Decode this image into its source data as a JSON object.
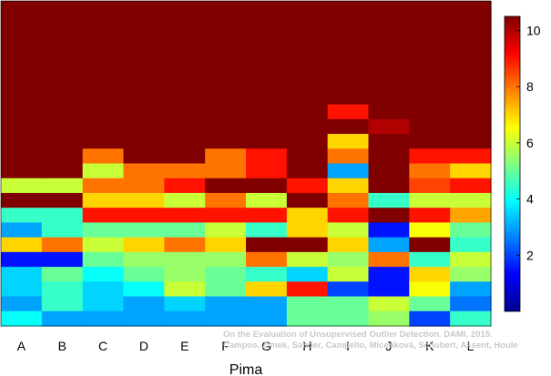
{
  "chart_data": {
    "type": "heatmap",
    "xlabel": "Pima",
    "categories": [
      "A",
      "B",
      "C",
      "D",
      "E",
      "F",
      "G",
      "H",
      "I",
      "J",
      "K",
      "L"
    ],
    "colorbar": {
      "min": 0,
      "max": 10.5,
      "ticks": [
        2,
        4,
        6,
        8,
        10
      ]
    },
    "grid": false,
    "colormap": [
      "#00008f",
      "#0000ff",
      "#0080ff",
      "#00ffff",
      "#80ff80",
      "#ffff00",
      "#ff8000",
      "#ff0000",
      "#800000"
    ],
    "source_credit": [
      "On the Evaluation of Unsupervised Outlier Detection. DAMI, 2015.",
      "Campos, Zimek, Sander, Campello, Micenková, Schubert, Assent, Houle"
    ],
    "row_count": 22,
    "columns": [
      [
        10.5,
        10.5,
        10.5,
        10.5,
        10.5,
        10.5,
        10.5,
        10.5,
        10.5,
        10.5,
        10.5,
        10.5,
        6,
        10.5,
        4.5,
        3,
        7,
        1.5,
        3.5,
        3.5,
        3,
        4
      ],
      [
        10.5,
        10.5,
        10.5,
        10.5,
        10.5,
        10.5,
        10.5,
        10.5,
        10.5,
        10.5,
        10.5,
        10.5,
        6,
        10.5,
        4.5,
        4.5,
        8,
        1.5,
        5,
        4.5,
        4.5,
        3
      ],
      [
        10.5,
        10.5,
        10.5,
        10.5,
        10.5,
        10.5,
        10.5,
        10.5,
        10.5,
        10.5,
        8,
        6,
        8,
        7,
        9,
        5,
        6,
        5,
        4,
        3.5,
        3.5,
        3
      ],
      [
        10.5,
        10.5,
        10.5,
        10.5,
        10.5,
        10.5,
        10.5,
        10.5,
        10.5,
        10.5,
        10.5,
        8,
        8,
        7,
        9,
        5,
        7,
        5.5,
        5,
        4,
        3,
        3
      ],
      [
        10.5,
        10.5,
        10.5,
        10.5,
        10.5,
        10.5,
        10.5,
        10.5,
        10.5,
        10.5,
        10.5,
        8,
        9,
        6,
        9,
        5,
        8,
        5.5,
        5.5,
        6,
        3.5,
        3
      ],
      [
        10.5,
        10.5,
        10.5,
        10.5,
        10.5,
        10.5,
        10.5,
        10.5,
        10.5,
        10.5,
        8,
        8,
        10.5,
        8,
        9,
        6,
        7,
        5.5,
        5,
        5,
        3,
        3
      ],
      [
        10.5,
        10.5,
        10.5,
        10.5,
        10.5,
        10.5,
        10.5,
        10.5,
        10.5,
        10.5,
        9,
        9,
        10.5,
        6,
        9,
        4.5,
        10.5,
        8,
        4.5,
        7,
        3,
        3
      ],
      [
        10.5,
        10.5,
        10.5,
        10.5,
        10.5,
        10.5,
        10.5,
        10.5,
        10.5,
        10.5,
        10.5,
        10.5,
        9,
        10.5,
        7,
        7,
        10.5,
        6,
        3.5,
        9,
        5,
        5
      ],
      [
        10.5,
        10.5,
        10.5,
        10.5,
        10.5,
        10.5,
        10.5,
        9,
        10.5,
        7,
        8,
        3,
        7,
        8,
        9,
        6,
        7,
        5.5,
        6,
        2,
        5,
        5
      ],
      [
        10.5,
        10.5,
        10.5,
        10.5,
        10.5,
        10.5,
        10.5,
        10.5,
        10,
        10.5,
        10.5,
        10.5,
        10.5,
        4.5,
        10.5,
        1.5,
        3,
        8,
        1.5,
        1.5,
        6,
        5.5
      ],
      [
        10.5,
        10.5,
        10.5,
        10.5,
        10.5,
        10.5,
        10.5,
        10.5,
        10.5,
        10.5,
        9,
        8,
        8.5,
        6,
        9,
        6.5,
        10.5,
        4.5,
        7,
        6.5,
        5,
        2
      ],
      [
        10.5,
        10.5,
        10.5,
        10.5,
        10.5,
        10.5,
        10.5,
        10.5,
        10.5,
        10.5,
        9,
        7,
        9,
        6,
        7.5,
        5,
        4.5,
        6,
        5.5,
        3,
        2.5,
        4.5
      ]
    ]
  }
}
